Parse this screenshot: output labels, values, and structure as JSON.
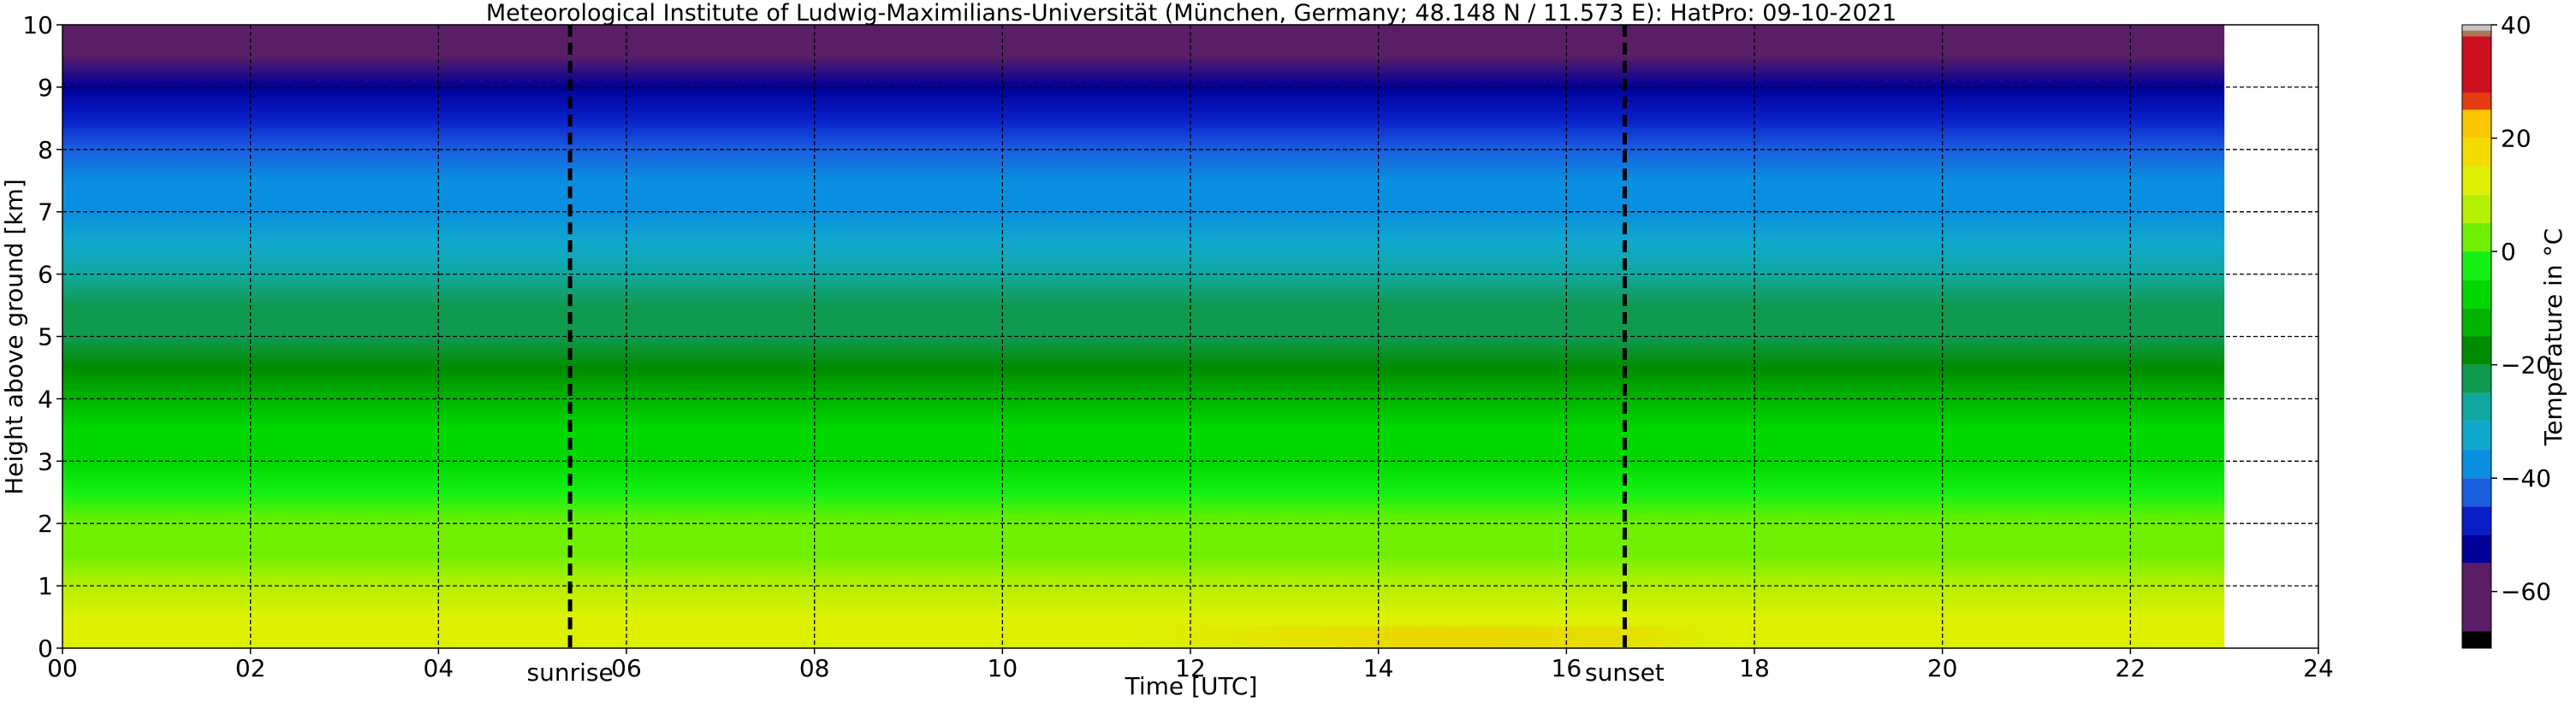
{
  "chart_data": {
    "type": "heatmap",
    "title": "Meteorological Institute of Ludwig-Maximilians-Universität (München, Germany; 48.148 N / 11.573 E):    HatPro: 09-10-2021",
    "xlabel": "Time [UTC]",
    "ylabel": "Height above ground [km]",
    "xlim": [
      0,
      24
    ],
    "ylim": [
      0,
      10
    ],
    "data_extent_x": [
      0,
      23
    ],
    "xticks": [
      0,
      2,
      4,
      6,
      8,
      10,
      12,
      14,
      16,
      18,
      20,
      22,
      24
    ],
    "xtick_labels": [
      "00",
      "02",
      "04",
      "06",
      "08",
      "10",
      "12",
      "14",
      "16",
      "18",
      "20",
      "22",
      "24"
    ],
    "yticks": [
      0,
      1,
      2,
      3,
      4,
      5,
      6,
      7,
      8,
      9,
      10
    ],
    "ytick_labels": [
      "0",
      "1",
      "2",
      "3",
      "4",
      "5",
      "6",
      "7",
      "8",
      "9",
      "10"
    ],
    "grid": true,
    "events": [
      {
        "label": "sunrise",
        "x": 5.4
      },
      {
        "label": "sunset",
        "x": 16.62
      }
    ],
    "temperature_profile": {
      "heights_km": [
        0.0,
        0.5,
        1.0,
        1.5,
        2.0,
        2.5,
        3.0,
        3.5,
        4.0,
        4.5,
        5.0,
        5.5,
        6.0,
        6.5,
        7.0,
        7.5,
        8.0,
        8.5,
        9.0,
        9.5,
        10.0
      ],
      "temperature_c": [
        13,
        10,
        7,
        4,
        1,
        -2,
        -6,
        -10,
        -14,
        -18,
        -22,
        -24,
        -27,
        -31,
        -36,
        -40,
        -45,
        -50,
        -55,
        -59,
        -62
      ]
    },
    "colorbar": {
      "label": "Temperature in °C",
      "range": [
        -70,
        40
      ],
      "ticks": [
        -60,
        -40,
        -20,
        0,
        20,
        40
      ],
      "tick_labels": [
        "−60",
        "−40",
        "−20",
        "0",
        "20",
        "40"
      ],
      "segments": [
        {
          "from": -70,
          "to": -67,
          "color": "#000000"
        },
        {
          "from": -67,
          "to": -55,
          "color": "#5a1e66"
        },
        {
          "from": -55,
          "to": -50,
          "color": "#000099"
        },
        {
          "from": -50,
          "to": -45,
          "color": "#0a1ec8"
        },
        {
          "from": -45,
          "to": -40,
          "color": "#1a5fe0"
        },
        {
          "from": -40,
          "to": -35,
          "color": "#0a8fe0"
        },
        {
          "from": -35,
          "to": -30,
          "color": "#10a8cc"
        },
        {
          "from": -30,
          "to": -25,
          "color": "#10a8a0"
        },
        {
          "from": -25,
          "to": -20,
          "color": "#109a50"
        },
        {
          "from": -20,
          "to": -15,
          "color": "#008c00"
        },
        {
          "from": -15,
          "to": -10,
          "color": "#00b400"
        },
        {
          "from": -10,
          "to": -5,
          "color": "#00d800"
        },
        {
          "from": -5,
          "to": 0,
          "color": "#14f014"
        },
        {
          "from": 0,
          "to": 5,
          "color": "#6ef000"
        },
        {
          "from": 5,
          "to": 10,
          "color": "#b4f000"
        },
        {
          "from": 10,
          "to": 15,
          "color": "#dcf000"
        },
        {
          "from": 15,
          "to": 20,
          "color": "#f5dc00"
        },
        {
          "from": 20,
          "to": 25,
          "color": "#fac800"
        },
        {
          "from": 25,
          "to": 28,
          "color": "#e63c14"
        },
        {
          "from": 28,
          "to": 38,
          "color": "#cc1020"
        },
        {
          "from": 38,
          "to": 39,
          "color": "#a87a5a"
        },
        {
          "from": 39,
          "to": 40,
          "color": "#c8c8c8"
        }
      ]
    }
  }
}
